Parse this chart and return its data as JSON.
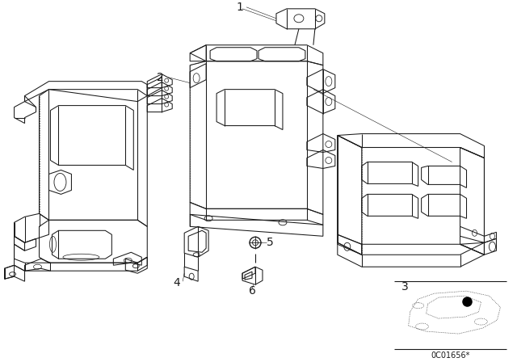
{
  "bg_color": "#ffffff",
  "lc": "#1a1a1a",
  "lw": 0.75,
  "thin": 0.4,
  "diagram_code": "0C01656*",
  "label_fs": 9.5
}
